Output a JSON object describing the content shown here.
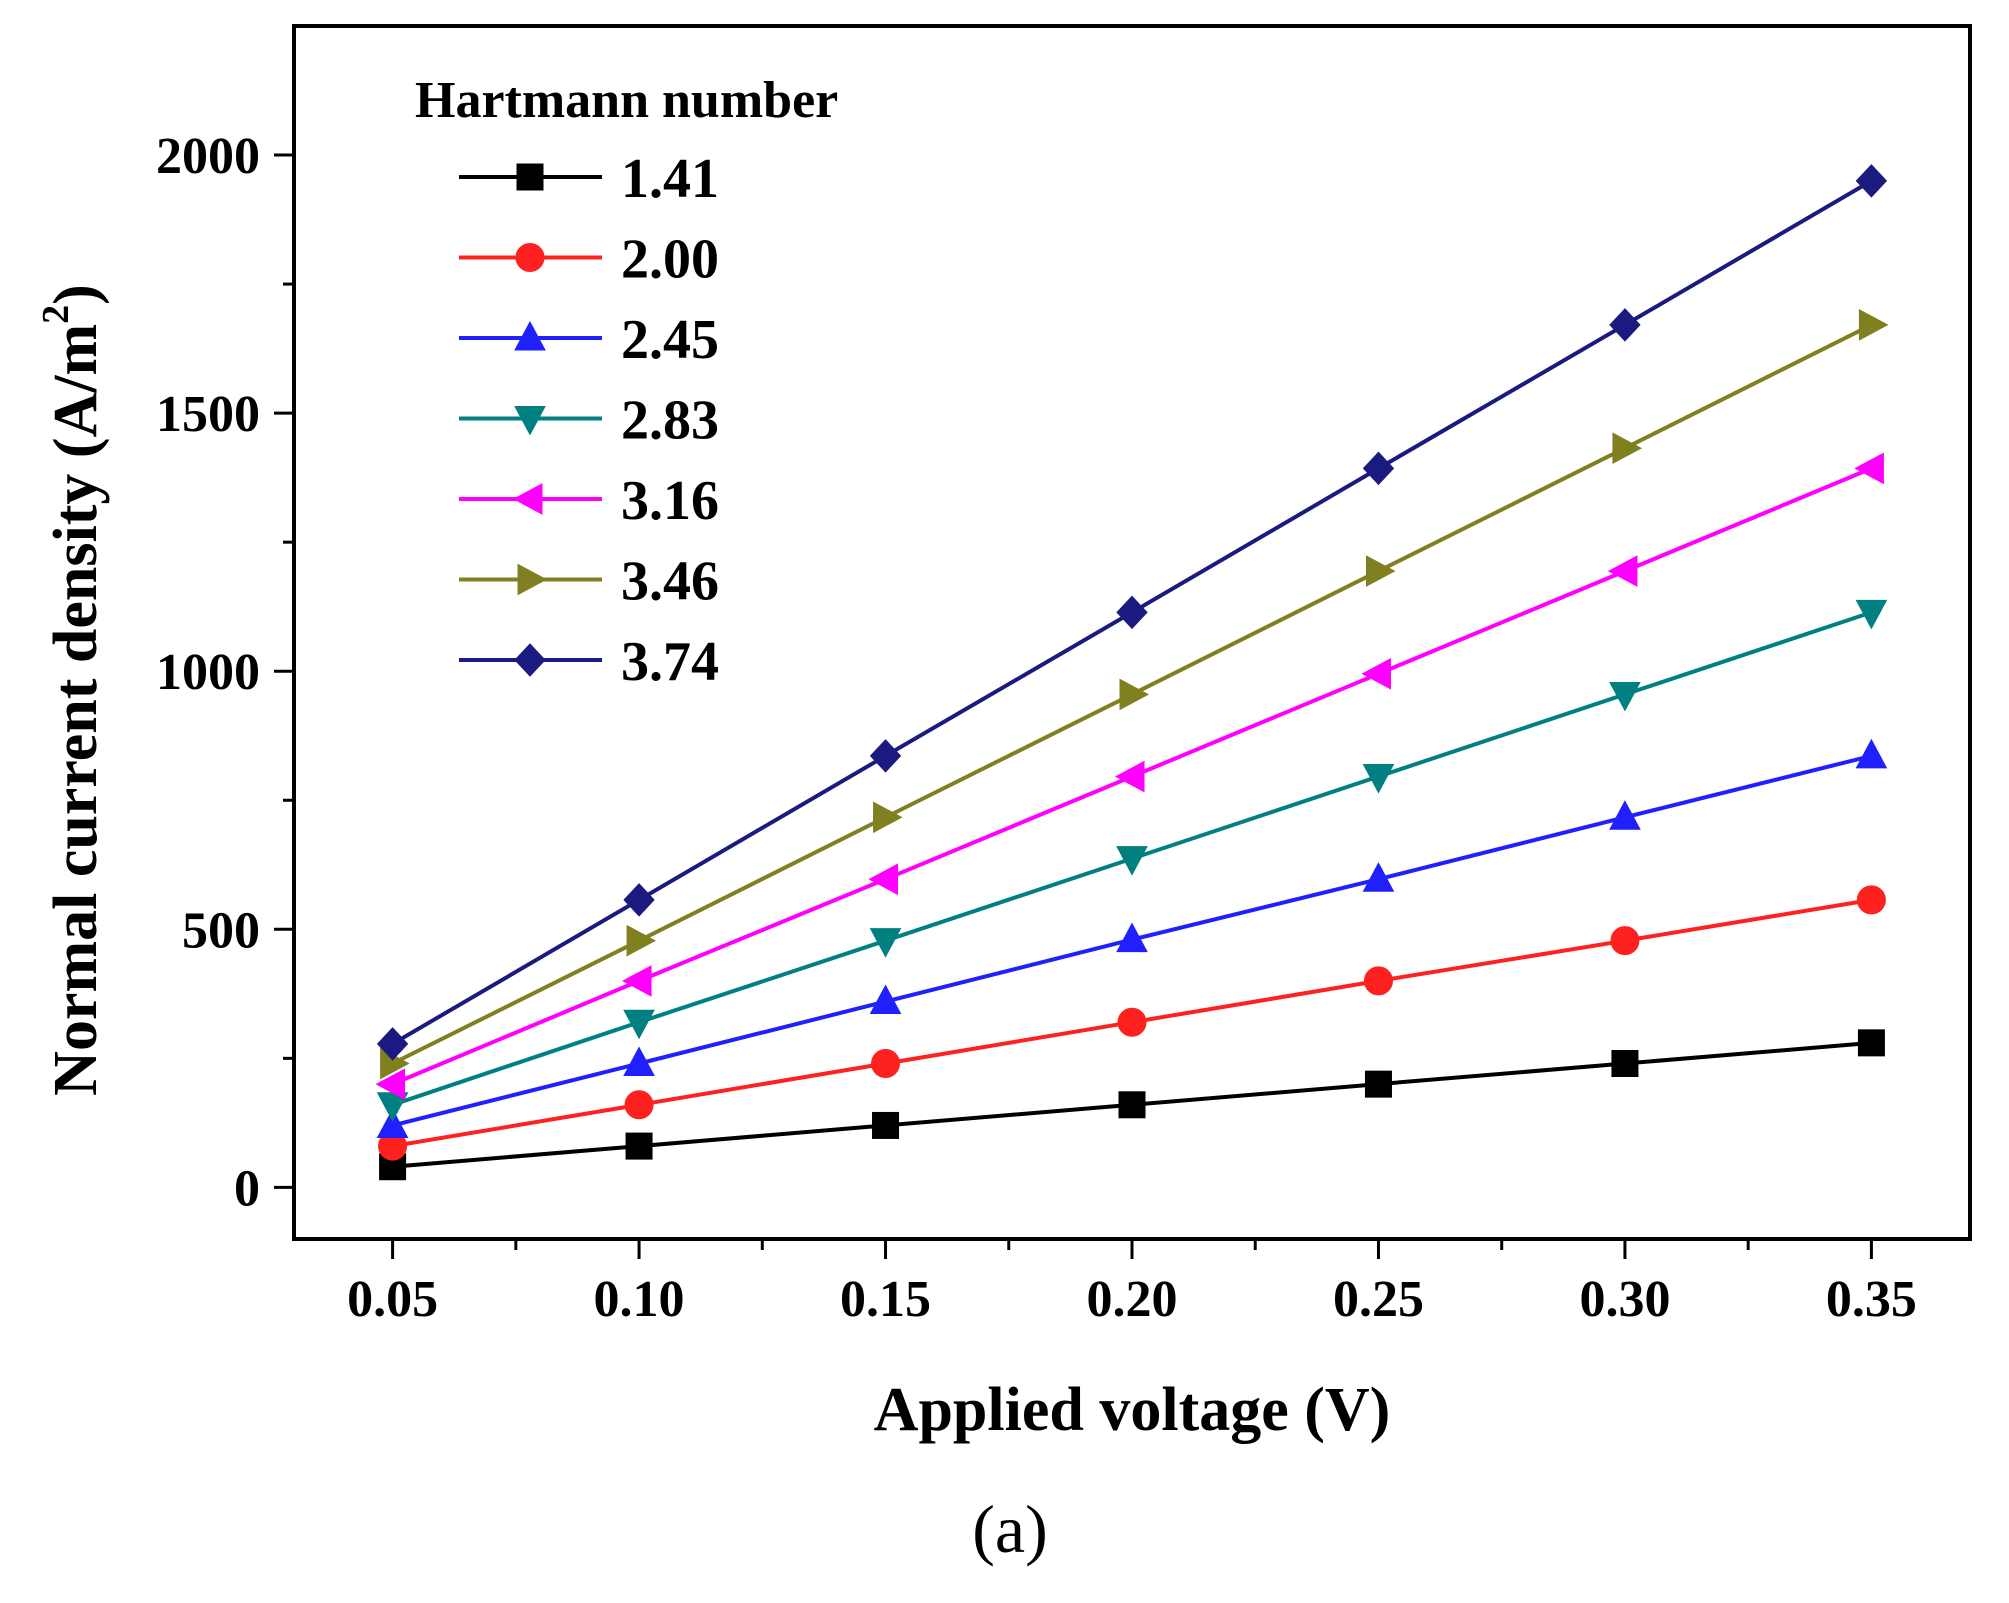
{
  "chart_data": {
    "type": "line",
    "title": "",
    "xlabel": "Applied voltage (V)",
    "ylabel": "Normal current density (A/m",
    "ylabel_superscript": "2",
    "ylabel_suffix": ")",
    "panel_label": "(a)",
    "x": [
      0.05,
      0.1,
      0.15,
      0.2,
      0.25,
      0.3,
      0.35
    ],
    "xlim": [
      0.03,
      0.37
    ],
    "ylim": [
      -100,
      2250
    ],
    "x_tick_labels": [
      "0.05",
      "0.10",
      "0.15",
      "0.20",
      "0.25",
      "0.30",
      "0.35"
    ],
    "y_tick_labels": [
      "0",
      "500",
      "1000",
      "1500",
      "2000"
    ],
    "grid": false,
    "legend": {
      "title": "Hartmann number",
      "placement": "top-left"
    },
    "series": [
      {
        "name": "1.41",
        "color": "#000000",
        "marker": "square",
        "values": [
          40,
          80,
          120,
          160,
          200,
          240,
          280
        ]
      },
      {
        "name": "2.00",
        "color": "#ff2020",
        "marker": "circle",
        "values": [
          80,
          160,
          240,
          320,
          400,
          478,
          557
        ]
      },
      {
        "name": "2.45",
        "color": "#2020ff",
        "marker": "triangle-up",
        "values": [
          120,
          240,
          360,
          480,
          597,
          717,
          836
        ]
      },
      {
        "name": "2.83",
        "color": "#008080",
        "marker": "triangle-down",
        "values": [
          160,
          320,
          478,
          637,
          796,
          955,
          1114
        ]
      },
      {
        "name": "3.16",
        "color": "#ff00ff",
        "marker": "triangle-left",
        "values": [
          200,
          400,
          597,
          796,
          995,
          1194,
          1393
        ]
      },
      {
        "name": "3.46",
        "color": "#808020",
        "marker": "triangle-right",
        "values": [
          240,
          478,
          717,
          955,
          1194,
          1432,
          1671
        ]
      },
      {
        "name": "3.74",
        "color": "#1a1a80",
        "marker": "diamond",
        "values": [
          278,
          557,
          836,
          1114,
          1393,
          1671,
          1950
        ]
      }
    ]
  }
}
